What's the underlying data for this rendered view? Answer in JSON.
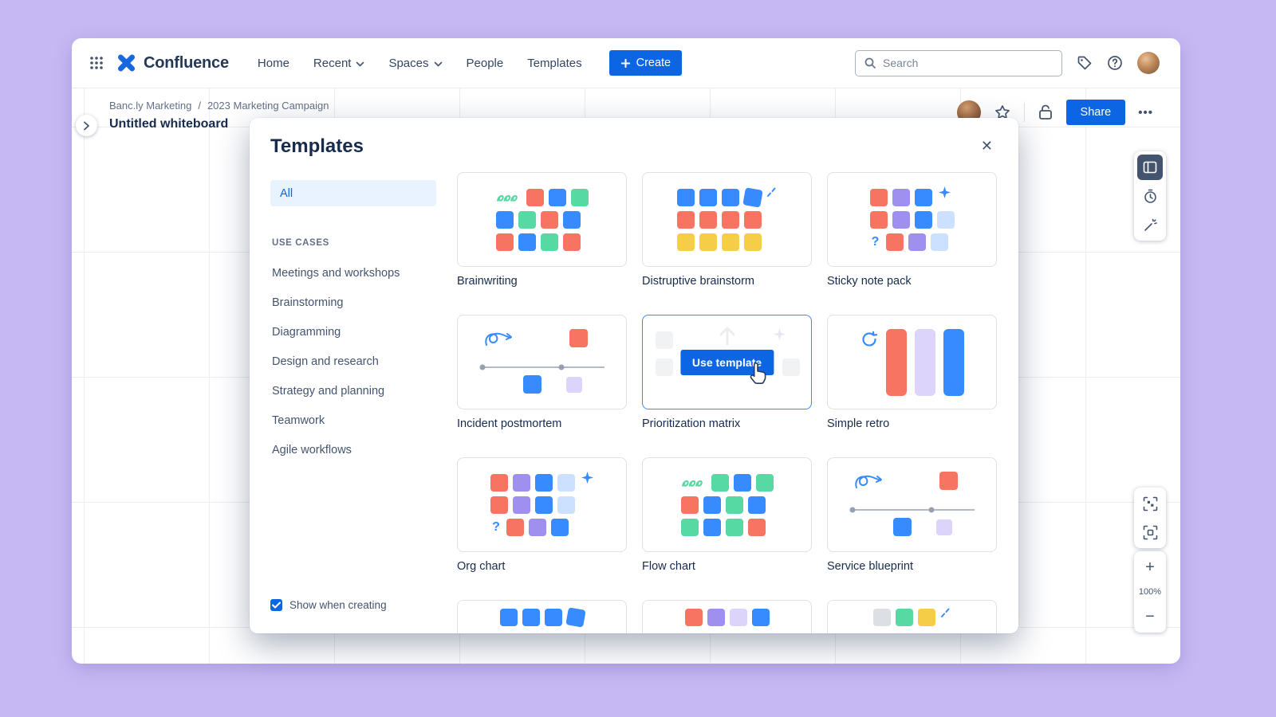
{
  "palette": {
    "orange": "#F87462",
    "blue": "#388BFF",
    "green": "#57D9A3",
    "yellow": "#F5CD47",
    "purple": "#9F8FEF",
    "lightpurple": "#DCD4FA",
    "lightblue": "#CCE0FF",
    "gray": "#DCDFE4",
    "accent": "#0C66E4"
  },
  "icons": {
    "more": "•••",
    "close": "✕",
    "zoom_in": "+",
    "zoom_out": "−"
  },
  "nav": {
    "brand": "Confluence",
    "items": [
      {
        "label": "Home",
        "chevron": false
      },
      {
        "label": "Recent",
        "chevron": true
      },
      {
        "label": "Spaces",
        "chevron": true
      },
      {
        "label": "People",
        "chevron": false
      },
      {
        "label": "Templates",
        "chevron": false
      }
    ],
    "create_label": "Create",
    "search_placeholder": "Search"
  },
  "board": {
    "breadcrumb": [
      "Banc.ly Marketing",
      "2023 Marketing Campaign"
    ],
    "breadcrumb_separator": "/",
    "title": "Untitled whiteboard",
    "share_label": "Share",
    "zoom_level": "100%"
  },
  "modal": {
    "title": "Templates",
    "use_template_label": "Use template",
    "sidebar": {
      "all_label": "All",
      "section_label": "USE CASES",
      "items": [
        "Meetings and workshops",
        "Brainstorming",
        "Diagramming",
        "Design and research",
        "Strategy and planning",
        "Teamwork",
        "Agile workflows"
      ],
      "show_when_creating_label": "Show when creating",
      "show_when_creating_checked": true
    },
    "templates": [
      {
        "name": "Brainwriting",
        "illustration": {
          "type": "grid",
          "rows": [
            [
              "squiggle",
              "orange",
              "blue",
              "green"
            ],
            [
              "blue",
              "green",
              "orange",
              "blue"
            ],
            [
              "orange",
              "blue",
              "green",
              "orange"
            ]
          ]
        }
      },
      {
        "name": "Distruptive brainstorm",
        "illustration": {
          "type": "grid",
          "rows": [
            [
              "blue",
              "blue",
              "blue",
              "tiltblue",
              "burst"
            ],
            [
              "orange",
              "orange",
              "orange",
              "orange"
            ],
            [
              "yellow",
              "yellow",
              "yellow",
              "yellow"
            ]
          ]
        }
      },
      {
        "name": "Sticky note pack",
        "illustration": {
          "type": "grid",
          "rows": [
            [
              "orange",
              "purple",
              "blue",
              "sparkle"
            ],
            [
              "orange",
              "purple",
              "blue",
              "lightblue"
            ],
            [
              "question",
              "orange",
              "purple",
              "lightblue"
            ]
          ]
        }
      },
      {
        "name": "Incident postmortem",
        "illustration": {
          "type": "timeline"
        }
      },
      {
        "name": "Prioritization matrix",
        "hovered": true,
        "illustration": {
          "type": "ghost"
        }
      },
      {
        "name": "Simple retro",
        "illustration": {
          "type": "retro",
          "bars": [
            "orange",
            "lightpurple",
            "blue"
          ]
        }
      },
      {
        "name": "Org chart",
        "illustration": {
          "type": "grid",
          "rows": [
            [
              "orange",
              "purple",
              "blue",
              "lightblue",
              "sparkle"
            ],
            [
              "orange",
              "purple",
              "blue",
              "lightblue"
            ],
            [
              "question",
              "orange",
              "purple",
              "blue"
            ]
          ]
        }
      },
      {
        "name": "Flow chart",
        "illustration": {
          "type": "grid",
          "rows": [
            [
              "squiggle",
              "green",
              "blue",
              "green"
            ],
            [
              "orange",
              "blue",
              "green",
              "blue"
            ],
            [
              "green",
              "blue",
              "green",
              "orange"
            ]
          ]
        }
      },
      {
        "name": "Service blueprint",
        "illustration": {
          "type": "timeline"
        }
      },
      {
        "name": "",
        "partial": true,
        "illustration": {
          "type": "grid",
          "rows": [
            [
              "blue",
              "blue",
              "blue",
              "tiltblue"
            ]
          ]
        }
      },
      {
        "name": "",
        "partial": true,
        "illustration": {
          "type": "grid",
          "rows": [
            [
              "orange",
              "purple",
              "lightpurple",
              "blue"
            ]
          ]
        }
      },
      {
        "name": "",
        "partial": true,
        "illustration": {
          "type": "grid",
          "rows": [
            [
              "gray",
              "green",
              "yellow",
              "burst"
            ]
          ]
        }
      }
    ]
  }
}
